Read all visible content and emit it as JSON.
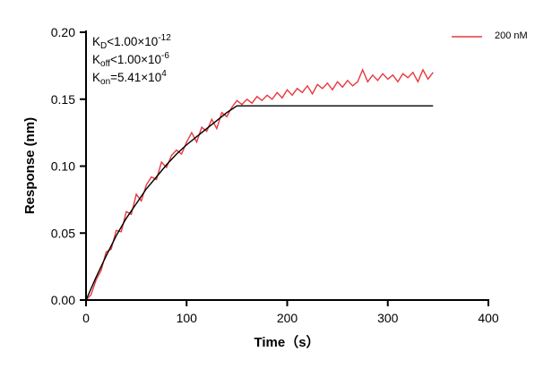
{
  "chart_data": {
    "type": "line",
    "xlabel": "Time（s）",
    "ylabel": "Response (nm)",
    "xlim": [
      0,
      400
    ],
    "ylim": [
      0,
      0.2
    ],
    "xticks": [
      "0",
      "100",
      "200",
      "300",
      "400"
    ],
    "yticks": [
      "0.00",
      "0.05",
      "0.10",
      "0.15",
      "0.20"
    ],
    "grid": false,
    "legend_position": "top-right",
    "annotations": [
      {
        "main": "K",
        "sub": "D",
        "rel": "<1.00×10",
        "sup": "-12"
      },
      {
        "main": "K",
        "sub": "off",
        "rel": "<1.00×10",
        "sup": "-6"
      },
      {
        "main": "K",
        "sub": "on",
        "rel": "=5.41×10",
        "sup": "4"
      }
    ],
    "series": [
      {
        "name": "200 nM",
        "color": "#e8383d",
        "x": [
          0,
          5,
          10,
          15,
          20,
          25,
          30,
          35,
          40,
          45,
          50,
          55,
          60,
          65,
          70,
          75,
          80,
          85,
          90,
          95,
          100,
          105,
          110,
          115,
          120,
          125,
          130,
          135,
          140,
          145,
          150,
          155,
          160,
          165,
          170,
          175,
          180,
          185,
          190,
          195,
          200,
          205,
          210,
          215,
          220,
          225,
          230,
          235,
          240,
          245,
          250,
          255,
          260,
          265,
          270,
          275,
          280,
          285,
          290,
          295,
          300,
          305,
          310,
          315,
          320,
          325,
          330,
          335,
          340,
          345
        ],
        "y": [
          0.0,
          0.004,
          0.015,
          0.022,
          0.036,
          0.038,
          0.052,
          0.051,
          0.066,
          0.064,
          0.079,
          0.074,
          0.086,
          0.092,
          0.09,
          0.103,
          0.099,
          0.108,
          0.112,
          0.109,
          0.118,
          0.125,
          0.118,
          0.129,
          0.126,
          0.135,
          0.128,
          0.14,
          0.137,
          0.144,
          0.149,
          0.146,
          0.15,
          0.147,
          0.152,
          0.149,
          0.153,
          0.15,
          0.155,
          0.151,
          0.157,
          0.153,
          0.158,
          0.155,
          0.16,
          0.154,
          0.161,
          0.158,
          0.162,
          0.157,
          0.163,
          0.159,
          0.164,
          0.16,
          0.163,
          0.172,
          0.163,
          0.168,
          0.164,
          0.169,
          0.165,
          0.168,
          0.163,
          0.169,
          0.166,
          0.17,
          0.163,
          0.172,
          0.165,
          0.17
        ]
      },
      {
        "color": "#000000",
        "x": [
          0,
          10,
          20,
          30,
          40,
          50,
          60,
          70,
          80,
          90,
          100,
          110,
          120,
          130,
          140,
          150,
          345
        ],
        "y": [
          0.0,
          0.017,
          0.033,
          0.048,
          0.061,
          0.072,
          0.083,
          0.092,
          0.101,
          0.109,
          0.116,
          0.122,
          0.128,
          0.134,
          0.14,
          0.145,
          0.145
        ]
      }
    ]
  }
}
